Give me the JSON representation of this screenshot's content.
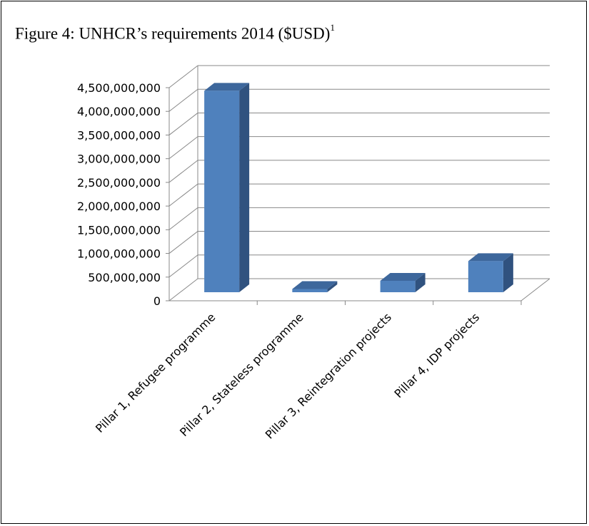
{
  "figure": {
    "caption": "Figure 4: UNHCR’s requirements 2014 ($USD)",
    "footnote_mark": "1"
  },
  "chart_data": {
    "type": "bar",
    "style": "3d-column",
    "title": "",
    "xlabel": "",
    "ylabel": "",
    "categories": [
      "Pillar 1, Refugee programme",
      "Pillar 2, Stateless programme",
      "Pillar 3, Reintegration projects",
      "Pillar 4, IDP projects"
    ],
    "values": [
      4400000000,
      70000000,
      250000000,
      680000000
    ],
    "ylim": [
      0,
      4500000000
    ],
    "yticks": [
      0,
      500000000,
      1000000000,
      1500000000,
      2000000000,
      2500000000,
      3000000000,
      3500000000,
      4000000000,
      4500000000
    ],
    "ytick_labels": [
      "0",
      "500,000,000",
      "1,000,000,000",
      "1,500,000,000",
      "2,000,000,000",
      "2,500,000,000",
      "3,000,000,000",
      "3,500,000,000",
      "4,000,000,000",
      "4,500,000,000"
    ],
    "grid": true,
    "legend": "none",
    "colors": {
      "bar_front": "#4f81bd",
      "bar_side": "#30527f",
      "bar_top": "#3d679c",
      "grid": "#888888",
      "axis": "#888888"
    }
  }
}
